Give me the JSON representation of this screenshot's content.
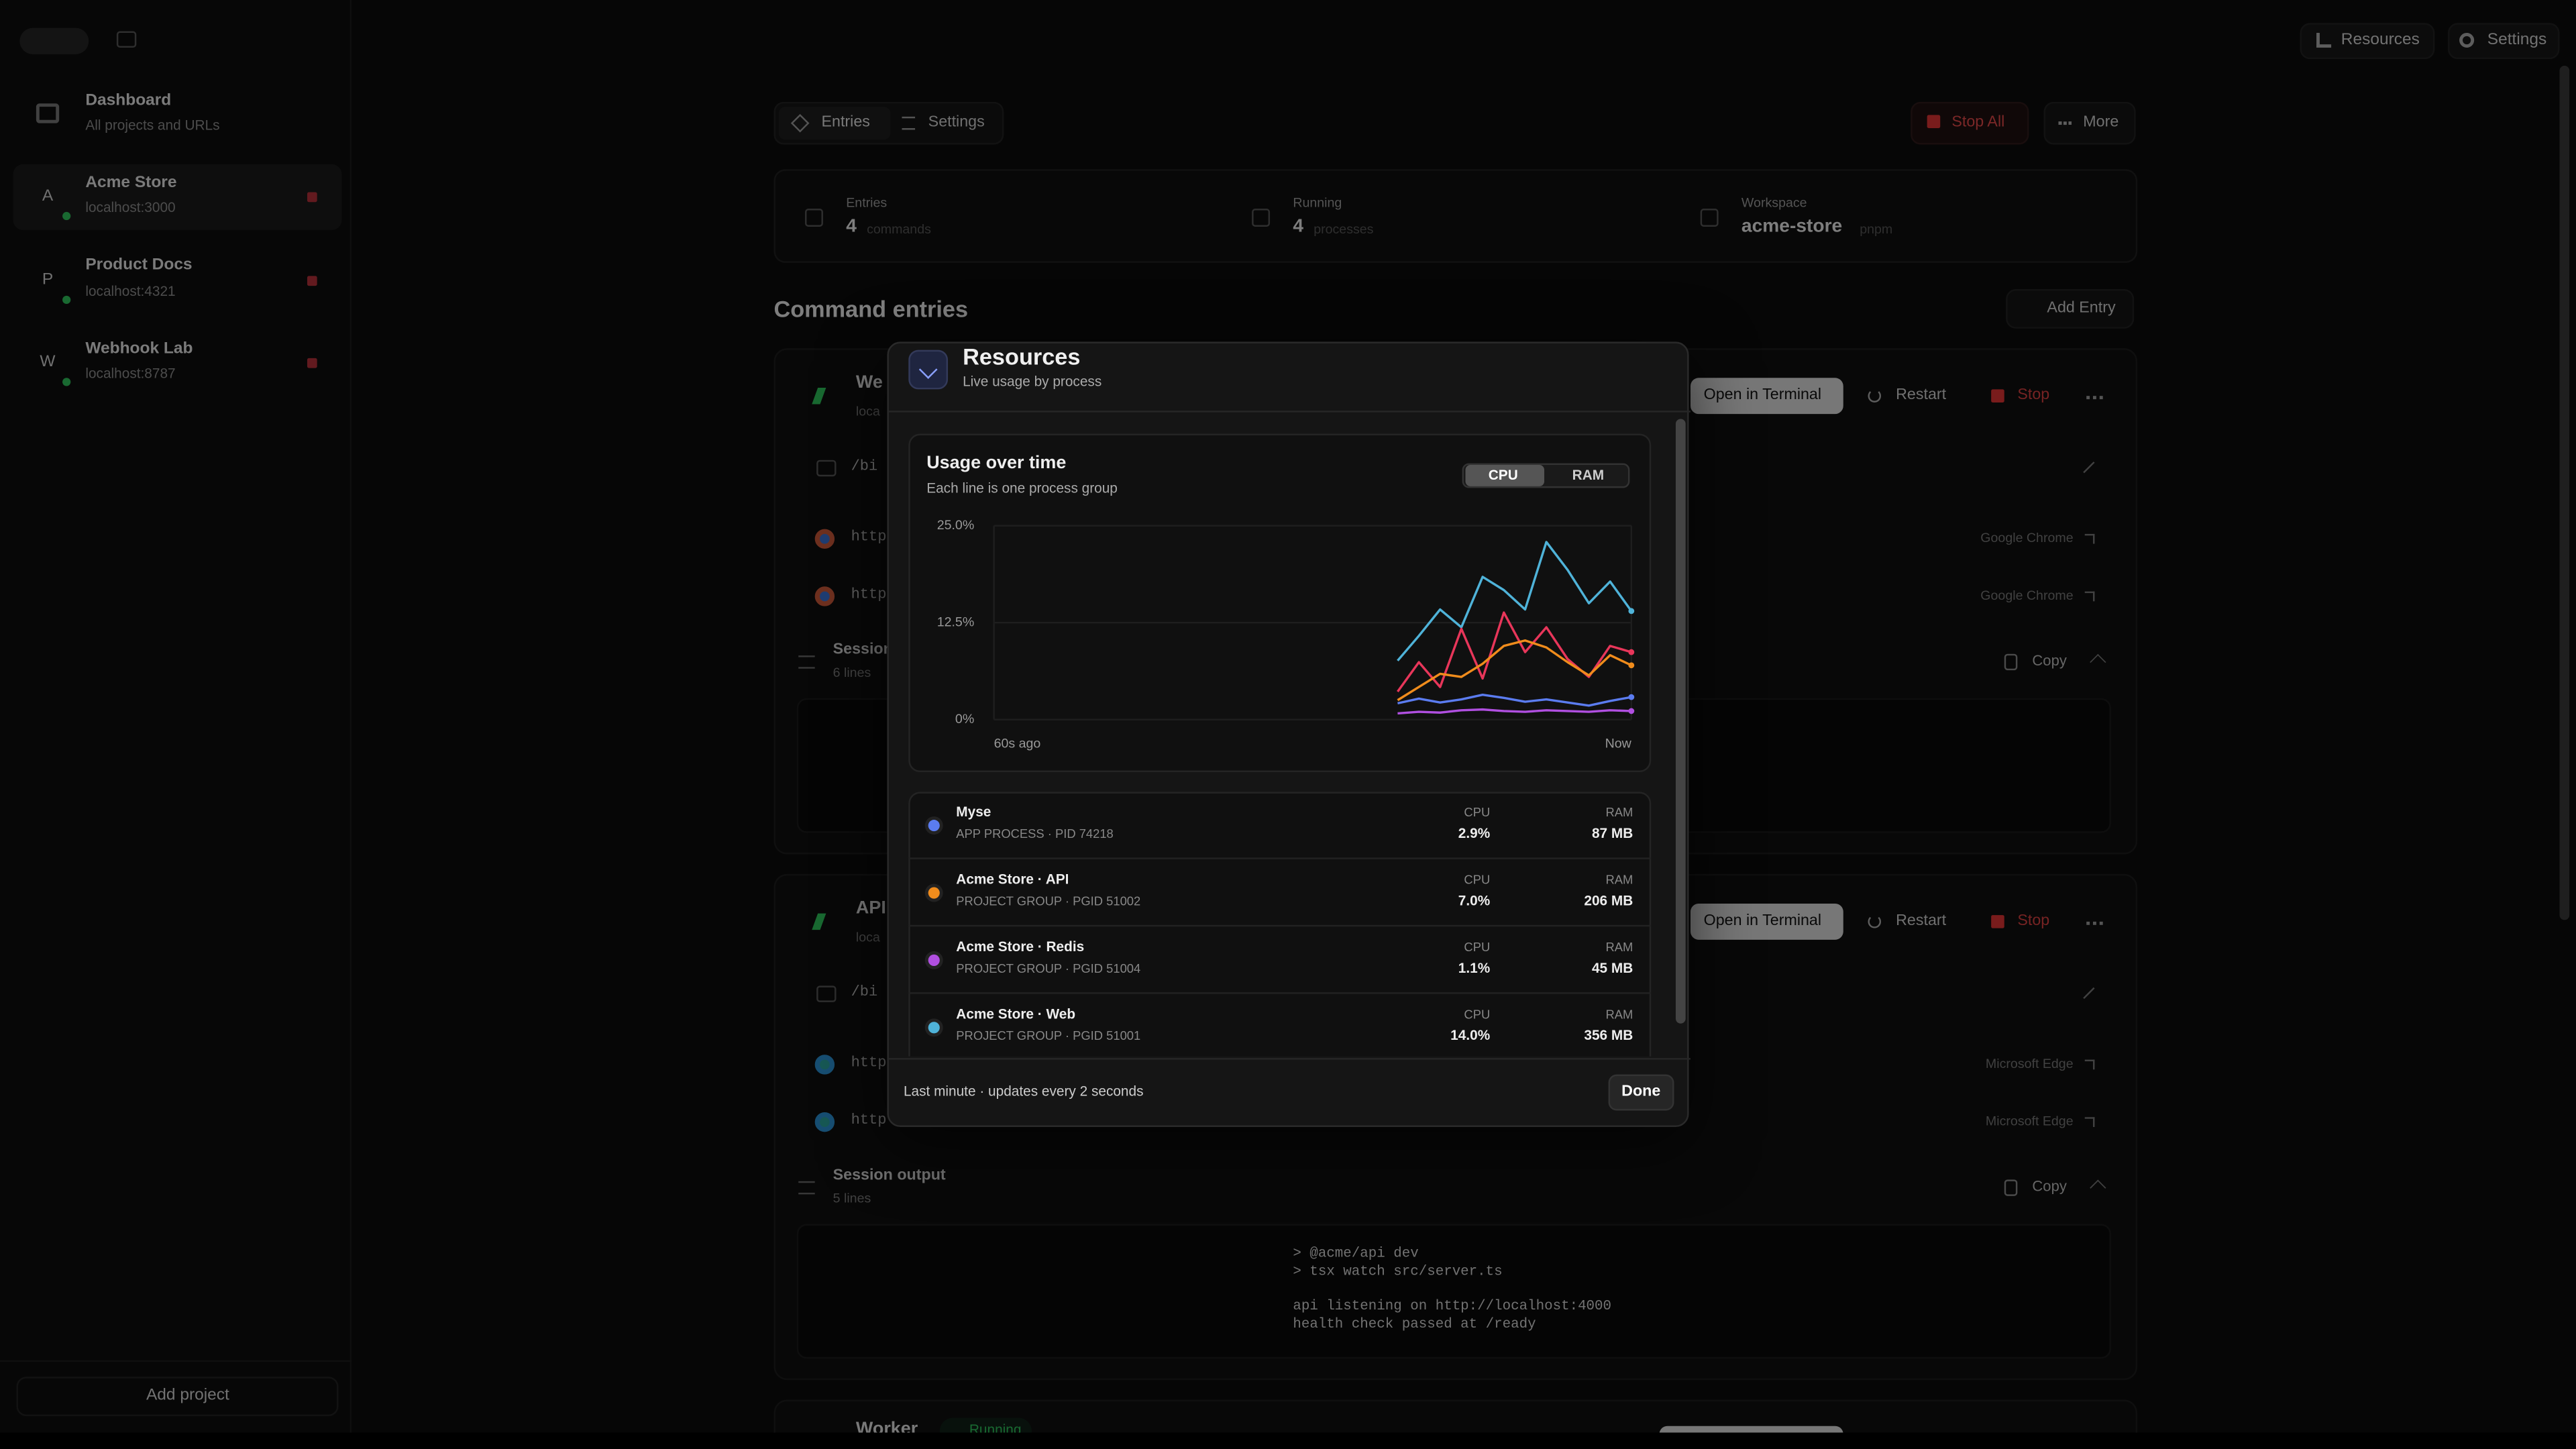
{
  "sidebar": {
    "dashboard": {
      "title": "Dashboard",
      "subtitle": "All projects and URLs"
    },
    "projects": [
      {
        "initial": "A",
        "name": "Acme Store",
        "url": "localhost:3000"
      },
      {
        "initial": "P",
        "name": "Product Docs",
        "url": "localhost:4321"
      },
      {
        "initial": "W",
        "name": "Webhook Lab",
        "url": "localhost:8787"
      }
    ],
    "add_project": "Add project"
  },
  "topbar": {
    "resources": "Resources",
    "settings": "Settings"
  },
  "toolbar": {
    "tabs": [
      "Entries",
      "Settings"
    ],
    "stop_all": "Stop All",
    "more": "More"
  },
  "stats": [
    {
      "label": "Entries",
      "value": "4",
      "unit": "commands"
    },
    {
      "label": "Running",
      "value": "4",
      "unit": "processes"
    },
    {
      "label": "Workspace",
      "value": "acme-store",
      "unit": "pnpm"
    }
  ],
  "section": {
    "title": "Command entries",
    "add": "Add Entry"
  },
  "entries": [
    {
      "name": "We",
      "subtitle": "loca",
      "actions": [
        "Open in Terminal",
        "Restart",
        "Stop"
      ],
      "command": "/bi",
      "links": [
        {
          "url": "http",
          "browser": "Google Chrome"
        },
        {
          "url": "http",
          "browser": "Google Chrome"
        }
      ],
      "session": {
        "title": "Session",
        "lines": "6 lines",
        "copy": "Copy"
      }
    },
    {
      "name": "API",
      "subtitle": "loca",
      "actions": [
        "Open in Terminal",
        "Restart",
        "Stop"
      ],
      "command": "/bi",
      "links": [
        {
          "url": "http",
          "browser": "Microsoft Edge"
        },
        {
          "url": "http",
          "browser": "Microsoft Edge"
        }
      ],
      "session": {
        "title": "Session output",
        "lines": "5 lines",
        "copy": "Copy"
      },
      "output": [
        "> @acme/api dev",
        "> tsx watch src/server.ts",
        "api  listening on http://localhost:4000",
        "health check passed at /ready"
      ]
    },
    {
      "name": "Worker",
      "status": "Running"
    }
  ],
  "modal": {
    "title": "Resources",
    "subtitle": "Live usage by process",
    "metric_toggle": [
      "CPU",
      "RAM"
    ],
    "processes": [
      {
        "name": "Myse",
        "detail": "APP PROCESS · PID 74218",
        "cpu_label": "CPU",
        "cpu": "2.9%",
        "ram_label": "RAM",
        "ram": "87 MB",
        "color": "#5b7cf0"
      },
      {
        "name": "Acme Store · API",
        "detail": "PROJECT GROUP · PGID 51002",
        "cpu_label": "CPU",
        "cpu": "7.0%",
        "ram_label": "RAM",
        "ram": "206 MB",
        "color": "#f08c1c"
      },
      {
        "name": "Acme Store · Redis",
        "detail": "PROJECT GROUP · PGID 51004",
        "cpu_label": "CPU",
        "cpu": "1.1%",
        "ram_label": "RAM",
        "ram": "45 MB",
        "color": "#b04fe0"
      },
      {
        "name": "Acme Store · Web",
        "detail": "PROJECT GROUP · PGID 51001",
        "cpu_label": "CPU",
        "cpu": "14.0%",
        "ram_label": "RAM",
        "ram": "356 MB",
        "color": "#4fb3d9"
      }
    ],
    "footer": "Last minute · updates every 2 seconds",
    "done": "Done"
  },
  "chart_data": {
    "type": "line",
    "title": "Usage over time",
    "subtitle": "Each line is one process group",
    "ylim": [
      0,
      25
    ],
    "yticks": [
      {
        "value": 0,
        "label": "0%"
      },
      {
        "value": 12.5,
        "label": "12.5%"
      },
      {
        "value": 25,
        "label": "25.0%"
      }
    ],
    "xticks": [
      {
        "value": 0,
        "label": "60s ago"
      },
      {
        "value": 30,
        "label": "Now"
      }
    ],
    "grid": true,
    "series": [
      {
        "color": "#4fb3d9",
        "values": [
          null,
          null,
          null,
          null,
          null,
          null,
          null,
          null,
          null,
          null,
          null,
          null,
          null,
          null,
          null,
          null,
          null,
          null,
          null,
          7.6,
          10.8,
          14.2,
          11.9,
          18.4,
          16.7,
          14.2,
          22.9,
          19.3,
          15.0,
          17.8,
          14.0
        ]
      },
      {
        "color": "#e8365a",
        "values": [
          null,
          null,
          null,
          null,
          null,
          null,
          null,
          null,
          null,
          null,
          null,
          null,
          null,
          null,
          null,
          null,
          null,
          null,
          null,
          3.6,
          7.4,
          4.2,
          11.7,
          5.3,
          13.8,
          8.7,
          11.9,
          7.8,
          5.5,
          9.5,
          8.7
        ]
      },
      {
        "color": "#f08c1c",
        "values": [
          null,
          null,
          null,
          null,
          null,
          null,
          null,
          null,
          null,
          null,
          null,
          null,
          null,
          null,
          null,
          null,
          null,
          null,
          null,
          2.5,
          4.2,
          5.9,
          5.5,
          7.2,
          9.5,
          10.2,
          9.3,
          7.4,
          5.7,
          8.3,
          7.0
        ]
      },
      {
        "color": "#5b7cf0",
        "values": [
          null,
          null,
          null,
          null,
          null,
          null,
          null,
          null,
          null,
          null,
          null,
          null,
          null,
          null,
          null,
          null,
          null,
          null,
          null,
          2.1,
          2.7,
          2.2,
          2.6,
          3.2,
          2.8,
          2.3,
          2.6,
          2.2,
          1.8,
          2.4,
          2.9
        ]
      },
      {
        "color": "#b04fe0",
        "values": [
          null,
          null,
          null,
          null,
          null,
          null,
          null,
          null,
          null,
          null,
          null,
          null,
          null,
          null,
          null,
          null,
          null,
          null,
          null,
          0.8,
          1.0,
          0.9,
          1.2,
          1.3,
          1.1,
          1.0,
          1.2,
          1.1,
          1.0,
          1.2,
          1.1
        ]
      }
    ]
  }
}
